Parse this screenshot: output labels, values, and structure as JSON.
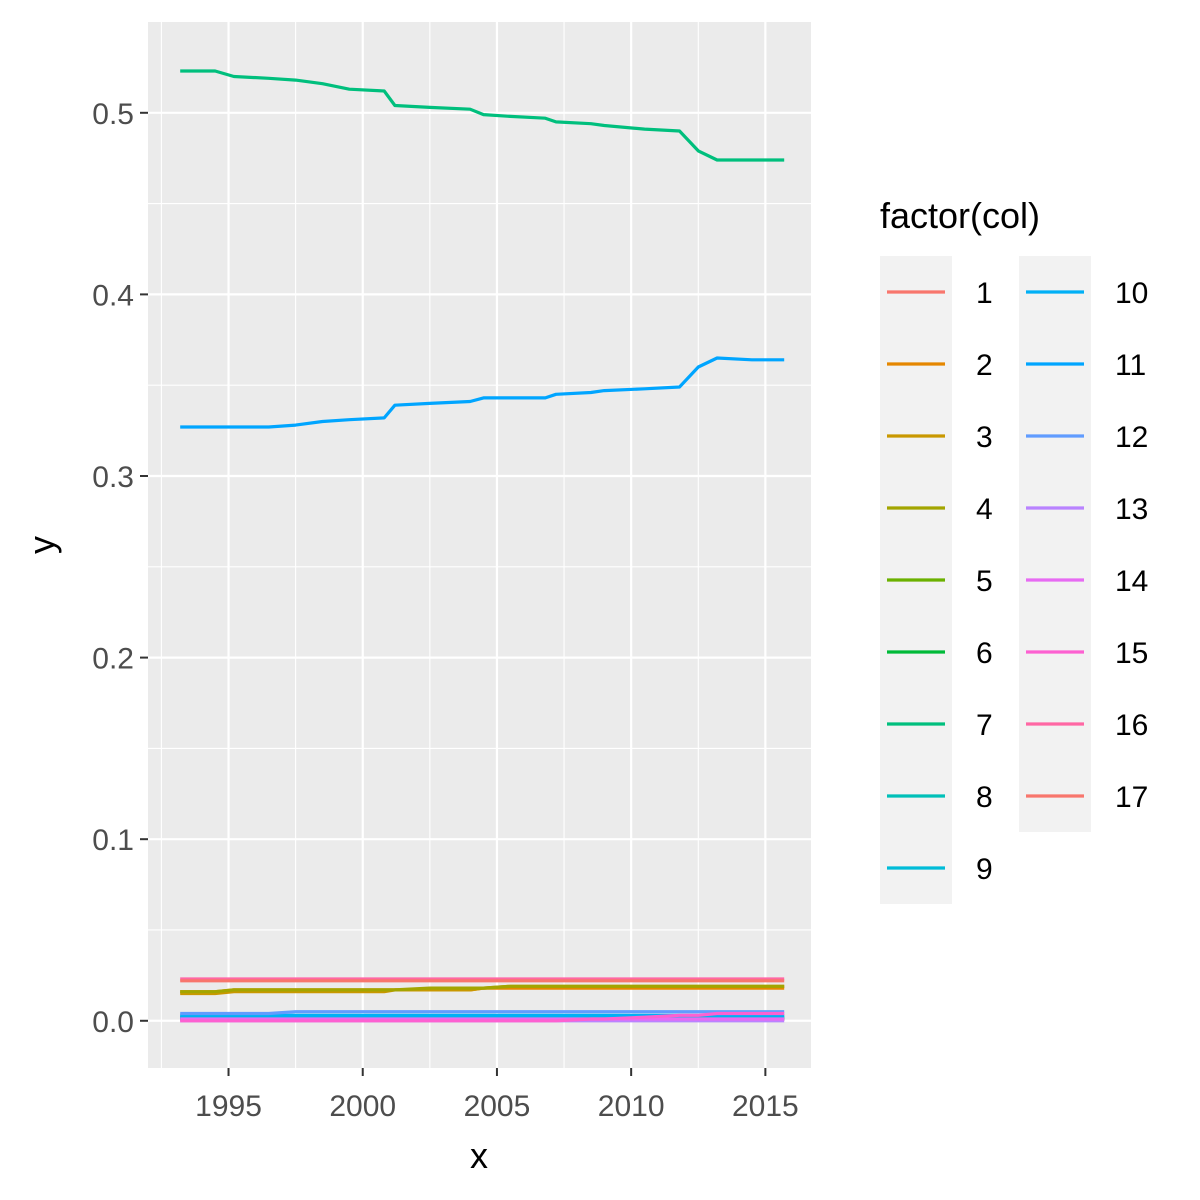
{
  "chart_data": {
    "type": "line",
    "title": "",
    "xlabel": "x",
    "ylabel": "y",
    "xlim": [
      1992.0,
      2016.7
    ],
    "ylim": [
      -0.026,
      0.55
    ],
    "x_ticks": [
      "1995",
      "2000",
      "2005",
      "2010",
      "2015"
    ],
    "y_ticks": [
      "0.0",
      "0.1",
      "0.2",
      "0.3",
      "0.4",
      "0.5"
    ],
    "grid": true,
    "legend": {
      "title": "factor(col)",
      "position": "right"
    },
    "x": [
      1993.2,
      1994.5,
      1995.2,
      1996.5,
      1997.5,
      1998.5,
      1999.5,
      2000.8,
      2001.2,
      2002.5,
      2004.0,
      2004.5,
      2005.5,
      2006.8,
      2007.2,
      2008.5,
      2009.0,
      2010.5,
      2011.8,
      2012.5,
      2013.2,
      2014.5,
      2015.7
    ],
    "series": [
      {
        "name": "1",
        "color": "#F8766D",
        "values": [
          0.001,
          0.001,
          0.001,
          0.001,
          0.001,
          0.001,
          0.001,
          0.001,
          0.001,
          0.001,
          0.001,
          0.001,
          0.001,
          0.001,
          0.001,
          0.001,
          0.001,
          0.001,
          0.001,
          0.001,
          0.001,
          0.001,
          0.001
        ]
      },
      {
        "name": "2",
        "color": "#E58700",
        "values": [
          0.016,
          0.016,
          0.017,
          0.017,
          0.017,
          0.017,
          0.017,
          0.017,
          0.017,
          0.017,
          0.017,
          0.018,
          0.018,
          0.018,
          0.018,
          0.018,
          0.018,
          0.018,
          0.018,
          0.018,
          0.018,
          0.018,
          0.018
        ]
      },
      {
        "name": "3",
        "color": "#C99800",
        "values": [
          0.015,
          0.015,
          0.016,
          0.016,
          0.016,
          0.016,
          0.016,
          0.016,
          0.017,
          0.017,
          0.017,
          0.018,
          0.019,
          0.019,
          0.019,
          0.019,
          0.019,
          0.019,
          0.019,
          0.019,
          0.019,
          0.019,
          0.019
        ]
      },
      {
        "name": "4",
        "color": "#A3A500",
        "values": [
          0.016,
          0.016,
          0.017,
          0.017,
          0.017,
          0.017,
          0.017,
          0.017,
          0.017,
          0.018,
          0.018,
          0.018,
          0.019,
          0.019,
          0.019,
          0.019,
          0.019,
          0.019,
          0.019,
          0.019,
          0.019,
          0.019,
          0.019
        ]
      },
      {
        "name": "5",
        "color": "#6BB100",
        "values": [
          0.001,
          0.001,
          0.001,
          0.001,
          0.001,
          0.001,
          0.001,
          0.001,
          0.001,
          0.001,
          0.001,
          0.001,
          0.001,
          0.001,
          0.001,
          0.001,
          0.001,
          0.001,
          0.001,
          0.001,
          0.001,
          0.001,
          0.001
        ]
      },
      {
        "name": "6",
        "color": "#00BA38",
        "values": [
          0.001,
          0.001,
          0.001,
          0.001,
          0.001,
          0.001,
          0.001,
          0.001,
          0.001,
          0.001,
          0.001,
          0.001,
          0.001,
          0.001,
          0.001,
          0.001,
          0.001,
          0.001,
          0.001,
          0.001,
          0.001,
          0.001,
          0.001
        ]
      },
      {
        "name": "7",
        "color": "#00BF7D",
        "values": [
          0.523,
          0.523,
          0.52,
          0.519,
          0.518,
          0.516,
          0.513,
          0.512,
          0.504,
          0.503,
          0.502,
          0.499,
          0.498,
          0.497,
          0.495,
          0.494,
          0.493,
          0.491,
          0.49,
          0.479,
          0.474,
          0.474,
          0.474
        ]
      },
      {
        "name": "8",
        "color": "#00C0B8",
        "values": [
          0.002,
          0.002,
          0.002,
          0.002,
          0.002,
          0.002,
          0.002,
          0.002,
          0.002,
          0.002,
          0.002,
          0.002,
          0.002,
          0.002,
          0.002,
          0.002,
          0.002,
          0.002,
          0.002,
          0.002,
          0.002,
          0.002,
          0.002
        ]
      },
      {
        "name": "9",
        "color": "#00BCD8",
        "values": [
          0.002,
          0.002,
          0.002,
          0.002,
          0.002,
          0.002,
          0.002,
          0.002,
          0.002,
          0.002,
          0.002,
          0.002,
          0.002,
          0.002,
          0.002,
          0.002,
          0.002,
          0.002,
          0.002,
          0.002,
          0.002,
          0.002,
          0.002
        ]
      },
      {
        "name": "10",
        "color": "#00B0F6",
        "values": [
          0.003,
          0.003,
          0.003,
          0.003,
          0.003,
          0.003,
          0.003,
          0.003,
          0.003,
          0.003,
          0.003,
          0.003,
          0.003,
          0.003,
          0.003,
          0.003,
          0.003,
          0.003,
          0.003,
          0.003,
          0.003,
          0.003,
          0.003
        ]
      },
      {
        "name": "11",
        "color": "#00A5FF",
        "values": [
          0.327,
          0.327,
          0.327,
          0.327,
          0.328,
          0.33,
          0.331,
          0.332,
          0.339,
          0.34,
          0.341,
          0.343,
          0.343,
          0.343,
          0.345,
          0.346,
          0.347,
          0.348,
          0.349,
          0.36,
          0.365,
          0.364,
          0.364
        ]
      },
      {
        "name": "12",
        "color": "#619CFF",
        "values": [
          0.004,
          0.004,
          0.004,
          0.004,
          0.005,
          0.005,
          0.005,
          0.005,
          0.005,
          0.005,
          0.005,
          0.005,
          0.005,
          0.005,
          0.005,
          0.005,
          0.005,
          0.005,
          0.005,
          0.005,
          0.005,
          0.005,
          0.005
        ]
      },
      {
        "name": "13",
        "color": "#B983FF",
        "values": [
          0.0,
          0.0,
          0.0,
          0.0,
          0.0,
          0.0,
          0.0,
          0.0,
          0.0,
          0.0,
          0.0,
          0.0,
          0.0,
          0.0,
          0.0,
          0.0,
          0.0,
          0.0,
          0.0,
          0.0,
          0.0,
          0.0,
          0.0
        ]
      },
      {
        "name": "14",
        "color": "#E76BF3",
        "values": [
          0.001,
          0.001,
          0.001,
          0.001,
          0.001,
          0.001,
          0.001,
          0.001,
          0.001,
          0.001,
          0.001,
          0.001,
          0.001,
          0.001,
          0.001,
          0.001,
          0.001,
          0.001,
          0.001,
          0.001,
          0.001,
          0.001,
          0.001
        ]
      },
      {
        "name": "15",
        "color": "#FD61D1",
        "values": [
          0.0,
          0.0,
          0.0,
          0.0,
          0.0,
          0.0,
          0.0,
          0.0,
          0.0,
          0.0,
          0.0,
          0.0,
          0.0,
          0.0,
          0.0,
          0.001,
          0.001,
          0.002,
          0.003,
          0.003,
          0.004,
          0.004,
          0.004
        ]
      },
      {
        "name": "16",
        "color": "#FF67A4",
        "values": [
          0.023,
          0.023,
          0.023,
          0.023,
          0.023,
          0.023,
          0.023,
          0.023,
          0.023,
          0.023,
          0.023,
          0.023,
          0.023,
          0.023,
          0.023,
          0.023,
          0.023,
          0.023,
          0.023,
          0.023,
          0.023,
          0.023,
          0.023
        ]
      },
      {
        "name": "17",
        "color": "#F8766D",
        "values": [
          0.022,
          0.022,
          0.022,
          0.022,
          0.022,
          0.022,
          0.022,
          0.022,
          0.022,
          0.022,
          0.022,
          0.022,
          0.022,
          0.022,
          0.022,
          0.022,
          0.022,
          0.022,
          0.022,
          0.022,
          0.022,
          0.022,
          0.022
        ]
      }
    ]
  }
}
